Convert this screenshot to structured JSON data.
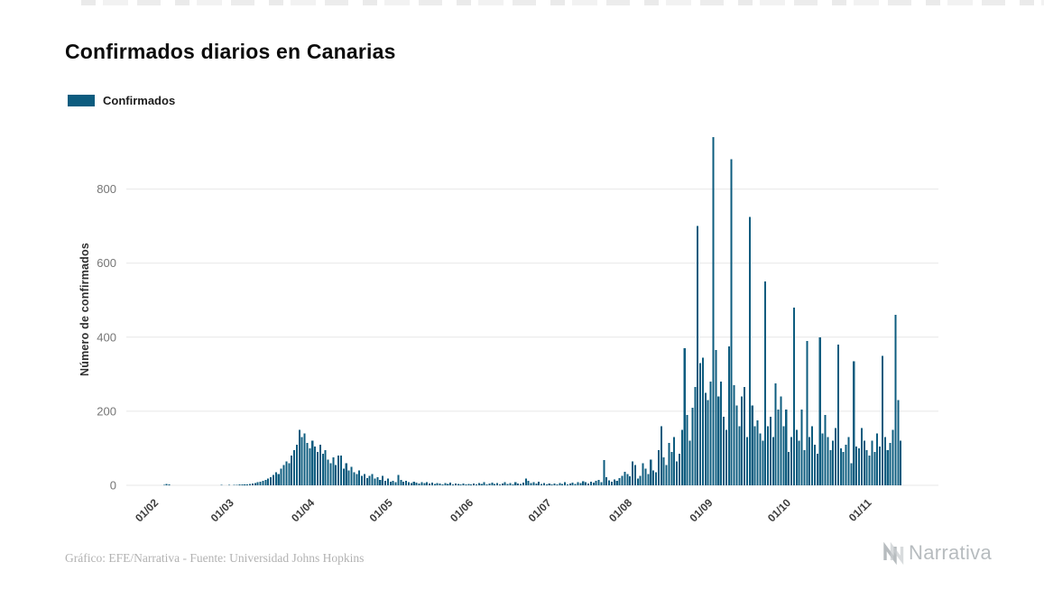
{
  "page": {
    "title": "Confirmados diarios en Canarias",
    "footer_credit": "Gráfico: EFE/Narrativa - Fuente: Universidad Johns Hopkins",
    "brand": "Narrativa"
  },
  "chart_data": {
    "type": "bar",
    "title": "Confirmados diarios en Canarias",
    "series_name": "Confirmados",
    "xlabel": "",
    "ylabel": "Número de confirmados",
    "ylim": [
      0,
      950
    ],
    "yticks": [
      0,
      200,
      400,
      600,
      800
    ],
    "grid": true,
    "legend_position": "top-left",
    "bar_color": "#0d5c7f",
    "grid_color": "#e7e7e7",
    "xticks": [
      "01/02",
      "01/03",
      "01/04",
      "01/05",
      "01/06",
      "01/07",
      "01/08",
      "01/09",
      "01/10",
      "01/11"
    ],
    "xtick_positions": [
      12,
      41,
      72,
      102,
      133,
      163,
      194,
      225,
      255,
      286
    ],
    "xlim": [
      0,
      312
    ],
    "values": [
      0,
      0,
      0,
      0,
      0,
      0,
      0,
      0,
      0,
      0,
      0,
      0,
      0,
      0,
      1,
      4,
      2,
      0,
      0,
      0,
      0,
      0,
      0,
      0,
      0,
      0,
      0,
      0,
      0,
      0,
      0,
      0,
      0,
      0,
      0,
      0,
      1,
      0,
      0,
      1,
      0,
      1,
      1,
      2,
      2,
      3,
      3,
      4,
      5,
      6,
      8,
      10,
      12,
      15,
      18,
      22,
      28,
      35,
      30,
      45,
      55,
      65,
      60,
      80,
      95,
      110,
      150,
      130,
      140,
      115,
      100,
      120,
      105,
      90,
      110,
      85,
      95,
      70,
      60,
      75,
      55,
      80,
      80,
      45,
      60,
      40,
      50,
      35,
      30,
      40,
      25,
      30,
      20,
      25,
      30,
      18,
      22,
      15,
      25,
      12,
      18,
      10,
      12,
      8,
      28,
      15,
      10,
      12,
      8,
      6,
      10,
      7,
      5,
      8,
      6,
      9,
      5,
      7,
      4,
      6,
      5,
      3,
      6,
      4,
      7,
      3,
      5,
      4,
      3,
      5,
      2,
      4,
      3,
      5,
      3,
      6,
      4,
      8,
      3,
      5,
      7,
      4,
      6,
      3,
      5,
      8,
      4,
      6,
      3,
      9,
      5,
      4,
      7,
      18,
      12,
      6,
      8,
      5,
      10,
      4,
      6,
      3,
      5,
      3,
      5,
      2,
      6,
      4,
      8,
      3,
      5,
      7,
      4,
      9,
      6,
      11,
      8,
      5,
      10,
      7,
      12,
      15,
      9,
      68,
      22,
      14,
      10,
      16,
      12,
      20,
      26,
      36,
      30,
      24,
      65,
      55,
      18,
      25,
      60,
      45,
      30,
      70,
      40,
      35,
      95,
      160,
      75,
      55,
      115,
      90,
      130,
      65,
      85,
      150,
      370,
      190,
      120,
      210,
      265,
      700,
      330,
      345,
      250,
      230,
      280,
      940,
      365,
      240,
      280,
      185,
      150,
      375,
      880,
      270,
      215,
      160,
      240,
      265,
      130,
      725,
      215,
      160,
      175,
      140,
      120,
      550,
      160,
      185,
      130,
      275,
      205,
      240,
      160,
      205,
      90,
      130,
      480,
      150,
      120,
      205,
      95,
      390,
      130,
      160,
      110,
      85,
      400,
      140,
      190,
      130,
      95,
      120,
      155,
      380,
      100,
      90,
      110,
      130,
      60,
      335,
      105,
      100,
      155,
      120,
      95,
      80,
      120,
      90,
      140,
      105,
      350,
      130,
      95,
      115,
      150,
      460,
      230,
      120
    ]
  }
}
